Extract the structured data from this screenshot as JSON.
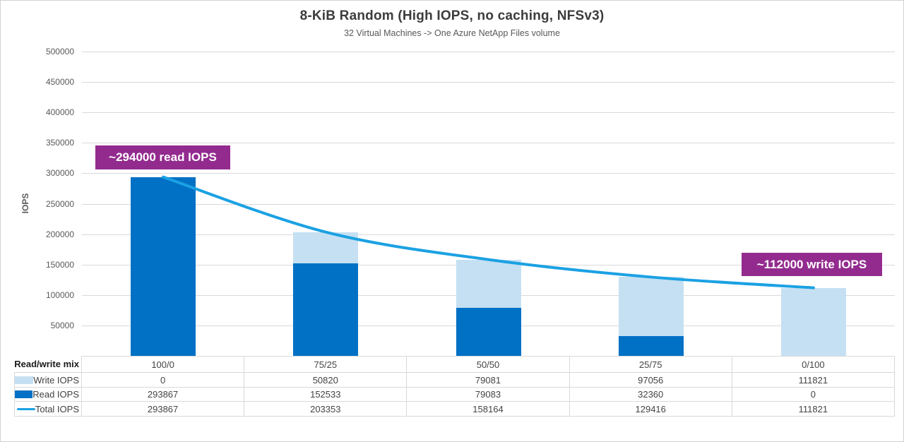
{
  "chart_data": {
    "type": "combo-stacked-bar-line",
    "title": "8-KiB Random (High IOPS, no caching, NFSv3)",
    "subtitle": "32 Virtual Machines -> One Azure NetApp Files volume",
    "categories": [
      "100/0",
      "75/25",
      "50/50",
      "25/75",
      "0/100"
    ],
    "series": [
      {
        "name": "Write IOPS",
        "type": "bar",
        "color": "#C5E0F2",
        "values": [
          0,
          50820,
          79081,
          97056,
          111821
        ]
      },
      {
        "name": "Read IOPS",
        "type": "bar",
        "color": "#0071C5",
        "values": [
          293867,
          152533,
          79083,
          32360,
          0
        ]
      },
      {
        "name": "Total IOPS",
        "type": "line",
        "color": "#1BA1E3",
        "values": [
          293867,
          203353,
          158164,
          129416,
          111821
        ]
      }
    ],
    "stack_order": [
      "Read IOPS",
      "Write IOPS"
    ],
    "xlabel": "Read/write mix",
    "ylabel": "IOPS",
    "ylim": [
      0,
      500000
    ],
    "ytick_step": 50000,
    "grid": true,
    "legend_position": "table-left",
    "annotation_color": "#932B8F",
    "annotations": [
      {
        "text": "~294000 read IOPS",
        "anchor": "first-point"
      },
      {
        "text": "~112000 write IOPS",
        "anchor": "last-point"
      }
    ]
  }
}
